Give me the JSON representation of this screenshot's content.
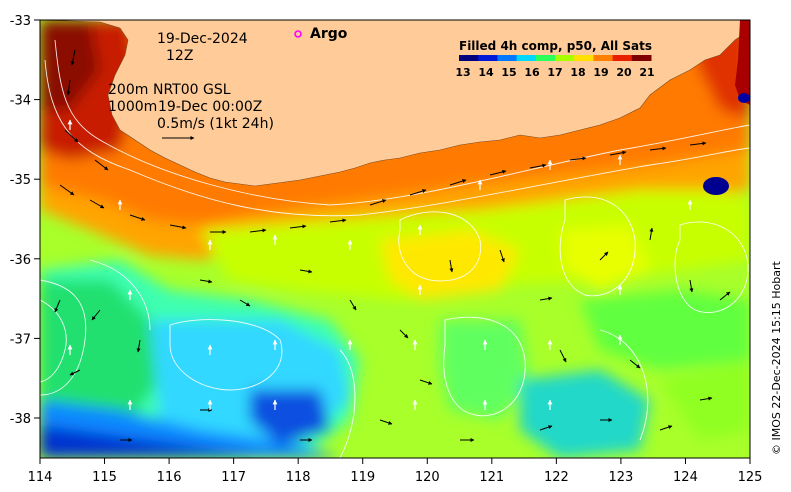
{
  "map": {
    "date": "19-Dec-2024",
    "time": "12Z",
    "contour_label_1": "200m",
    "contour_label_2": "1000m",
    "altimetry_product": "NRT00 GSL",
    "altimetry_time": "19-Dec 00:00Z",
    "scale_vector_label": "0.5m/s (1kt 24h)",
    "argo_label": "Argo",
    "colorbar_title": "Filled 4h comp, p50, All Sats",
    "colorbar_ticks": [
      "13",
      "14",
      "15",
      "16",
      "17",
      "18",
      "19",
      "20",
      "21"
    ],
    "colorbar_colors": [
      "#00007f",
      "#0018d8",
      "#0078ff",
      "#00d8ff",
      "#2aff5a",
      "#a8ff00",
      "#ffe000",
      "#ff8000",
      "#e82000",
      "#7f0000"
    ],
    "credit": "© IMOS 22-Dec-2024 15:15 Hobart",
    "x_ticks": [
      "114",
      "115",
      "116",
      "117",
      "118",
      "119",
      "120",
      "121",
      "122",
      "123",
      "124",
      "125"
    ],
    "y_ticks": [
      "-33",
      "-34",
      "-35",
      "-36",
      "-37",
      "-38"
    ],
    "land_color": "#ffcc99",
    "argo_color": "#ff00ff"
  }
}
